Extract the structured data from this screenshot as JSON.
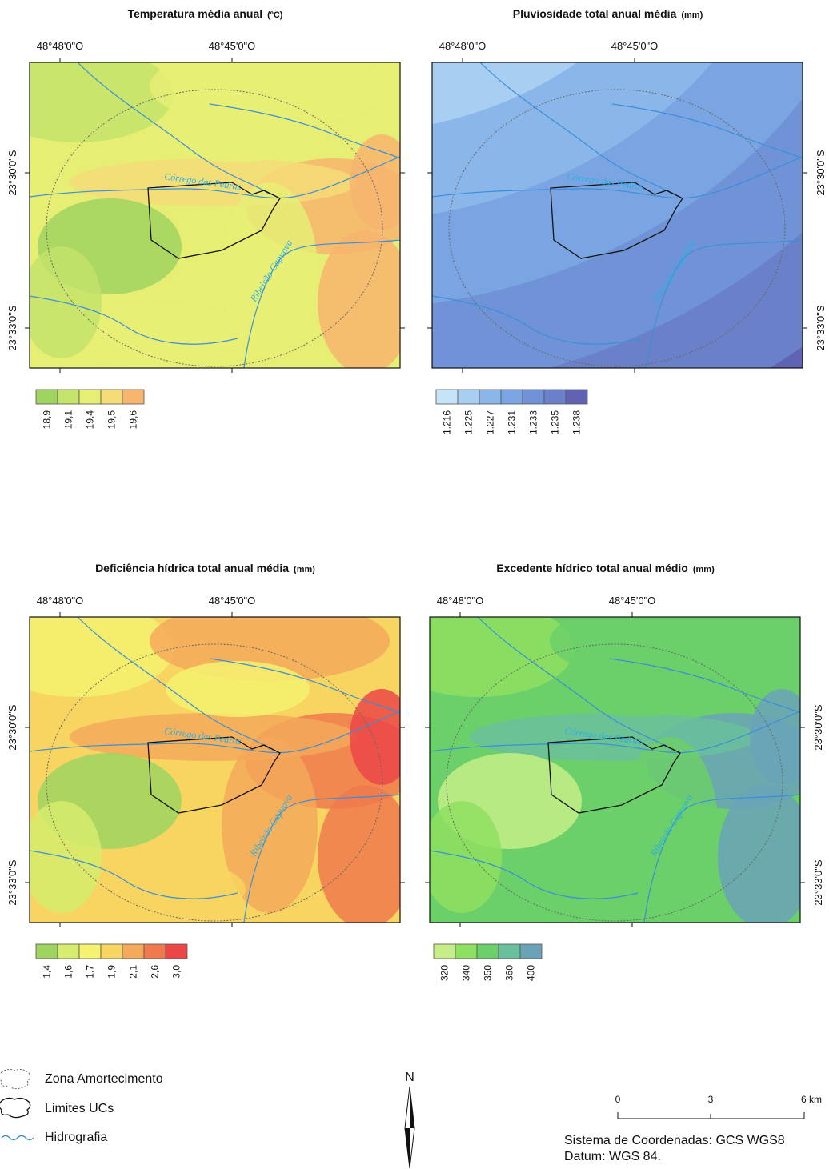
{
  "panels": [
    {
      "title": "Temperatura média anual",
      "unit": "(ºC)",
      "x_labels": [
        "48°48'0\"O",
        "48°45'0\"O"
      ],
      "y_labels": [
        "23°30'0\"S",
        "23°33'0\"S"
      ],
      "legend": {
        "labels": [
          "18,9",
          "19,1",
          "19,4",
          "19,5",
          "19,6"
        ],
        "colors": [
          "#9fd460",
          "#c4e36a",
          "#e6ef74",
          "#f5dc78",
          "#f7b56e"
        ]
      }
    },
    {
      "title": "Pluviosidade total anual média",
      "unit": "(mm)",
      "x_labels": [
        "48°48'0\"O",
        "48°45'0\"O"
      ],
      "y_labels": [
        "23°30'0\"S",
        "23°33'0\"S"
      ],
      "legend": {
        "labels": [
          "1.216",
          "1.225",
          "1.227",
          "1.231",
          "1.233",
          "1.235",
          "1.238"
        ],
        "colors": [
          "#c6e4f7",
          "#a8cef2",
          "#8ab6ea",
          "#7aa4e2",
          "#7092d6",
          "#6a80c9",
          "#6062b4"
        ]
      }
    },
    {
      "title": "Deficiência hídrica total anual média",
      "unit": "(mm)",
      "x_labels": [
        "48°48'0\"O",
        "48°45'0\"O"
      ],
      "y_labels": [
        "23°30'0\"S",
        "23°33'0\"S"
      ],
      "legend": {
        "labels": [
          "1,4",
          "1,6",
          "1,7",
          "1,9",
          "2,1",
          "2,6",
          "3,0"
        ],
        "colors": [
          "#9fd460",
          "#d6ec6c",
          "#f5f270",
          "#f8d460",
          "#f5a95a",
          "#f07a4e",
          "#ec4646"
        ]
      }
    },
    {
      "title": "Excedente hídrico total anual médio",
      "unit": "(mm)",
      "x_labels": [
        "48°48'0\"O",
        "48°45'0\"O"
      ],
      "y_labels": [
        "23°30'0\"S",
        "23°33'0\"S"
      ],
      "legend": {
        "labels": [
          "320",
          "340",
          "350",
          "360",
          "400"
        ],
        "colors": [
          "#c6ee88",
          "#8ee060",
          "#6bcf6a",
          "#6abf9c",
          "#6aa3b8"
        ]
      }
    }
  ],
  "rivers": [
    "Córrego das Pedras",
    "Ribeirão Capuava"
  ],
  "legend": {
    "items": [
      "Zona Amortecimento",
      "Limites UCs",
      "Hidrografia"
    ]
  },
  "north": "N",
  "scale": {
    "labels": [
      "0",
      "3",
      "6 km"
    ]
  },
  "notes": [
    "Sistema de Coordenadas: GCS WGS8",
    "Datum: WGS 84."
  ]
}
